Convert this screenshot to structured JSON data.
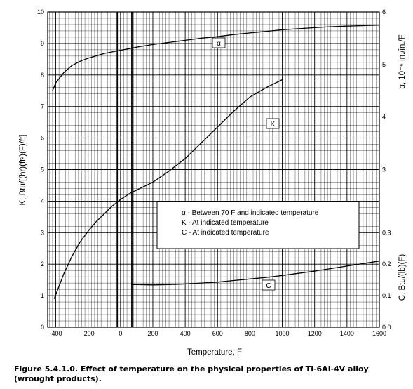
{
  "caption": "Figure 5.4.1.0.  Effect of temperature on the physical properties of Ti-6Al-4V alloy (wrought products).",
  "chart_data": {
    "type": "line",
    "xlabel": "Temperature, F",
    "ylabel_left": "K, Btu/[(hr)(ft²)(F)/ft]",
    "ylabel_right_top": "α, 10⁻⁶ in./in./F",
    "ylabel_right_bottom": "C, Btu/(lb)(F)",
    "xlim": [
      -450,
      1600
    ],
    "x_ticks": [
      "-400",
      "-200",
      "0",
      "200",
      "400",
      "600",
      "800",
      "1000",
      "1200",
      "1400",
      "1600"
    ],
    "x_tick_values": [
      -400,
      -200,
      0,
      200,
      400,
      600,
      800,
      1000,
      1200,
      1400,
      1600
    ],
    "ylim_left": [
      0,
      10
    ],
    "y_ticks_left": [
      "0",
      "1",
      "2",
      "3",
      "4",
      "5",
      "6",
      "7",
      "8",
      "9",
      "10"
    ],
    "y_tick_values_left": [
      0,
      1,
      2,
      3,
      4,
      5,
      6,
      7,
      8,
      9,
      10
    ],
    "ylim_alpha": [
      0,
      6
    ],
    "alpha_ticks": [
      "3",
      "4",
      "5",
      "6"
    ],
    "alpha_tick_values": [
      3,
      4,
      5,
      6
    ],
    "ylim_c": [
      0,
      1
    ],
    "c_ticks": [
      "0.0",
      "0.1",
      "0.2",
      "0.3"
    ],
    "c_tick_values": [
      0.0,
      0.1,
      0.2,
      0.3
    ],
    "grid": true,
    "series": [
      {
        "name": "α",
        "axis": "alpha",
        "x": [
          -420,
          -400,
          -350,
          -300,
          -250,
          -200,
          -100,
          0,
          70,
          100,
          200,
          300,
          400,
          500,
          600,
          700,
          800,
          900,
          1000,
          1100,
          1200,
          1300,
          1400,
          1500,
          1600
        ],
        "values": [
          4.5,
          4.65,
          4.85,
          4.98,
          5.06,
          5.12,
          5.21,
          5.27,
          5.31,
          5.33,
          5.38,
          5.42,
          5.46,
          5.5,
          5.53,
          5.57,
          5.6,
          5.63,
          5.66,
          5.68,
          5.7,
          5.72,
          5.73,
          5.74,
          5.75
        ]
      },
      {
        "name": "K",
        "axis": "left",
        "x": [
          -410,
          -380,
          -350,
          -300,
          -250,
          -200,
          -150,
          -100,
          -50,
          0,
          50,
          70,
          100,
          200,
          300,
          400,
          500,
          600,
          700,
          800,
          900,
          1000
        ],
        "values": [
          0.9,
          1.3,
          1.7,
          2.25,
          2.7,
          3.05,
          3.35,
          3.6,
          3.85,
          4.05,
          4.22,
          4.28,
          4.35,
          4.6,
          4.95,
          5.35,
          5.85,
          6.35,
          6.85,
          7.3,
          7.6,
          7.85
        ]
      },
      {
        "name": "C",
        "axis": "c",
        "x": [
          70,
          100,
          200,
          300,
          400,
          500,
          600,
          700,
          800,
          900,
          1000,
          1100,
          1200,
          1300,
          1400,
          1500,
          1600
        ],
        "values": [
          0.135,
          0.135,
          0.134,
          0.135,
          0.137,
          0.14,
          0.143,
          0.148,
          0.153,
          0.158,
          0.164,
          0.171,
          0.178,
          0.186,
          0.194,
          0.202,
          0.21
        ]
      }
    ],
    "curve_labels": {
      "alpha": "α",
      "k": "K",
      "c": "C"
    },
    "curve_label_positions": {
      "alpha": {
        "x": 590,
        "y": 9.0
      },
      "k": {
        "x": 950,
        "y": 6.5
      },
      "c": {
        "x": 920,
        "y": 1.3
      }
    },
    "legend": {
      "placement": "center-right",
      "entries": [
        "α - Between 70 F and indicated temperature",
        "K - At indicated temperature",
        "C - At indicated temperature"
      ]
    },
    "reference_lines_x": [
      -20,
      70
    ]
  }
}
